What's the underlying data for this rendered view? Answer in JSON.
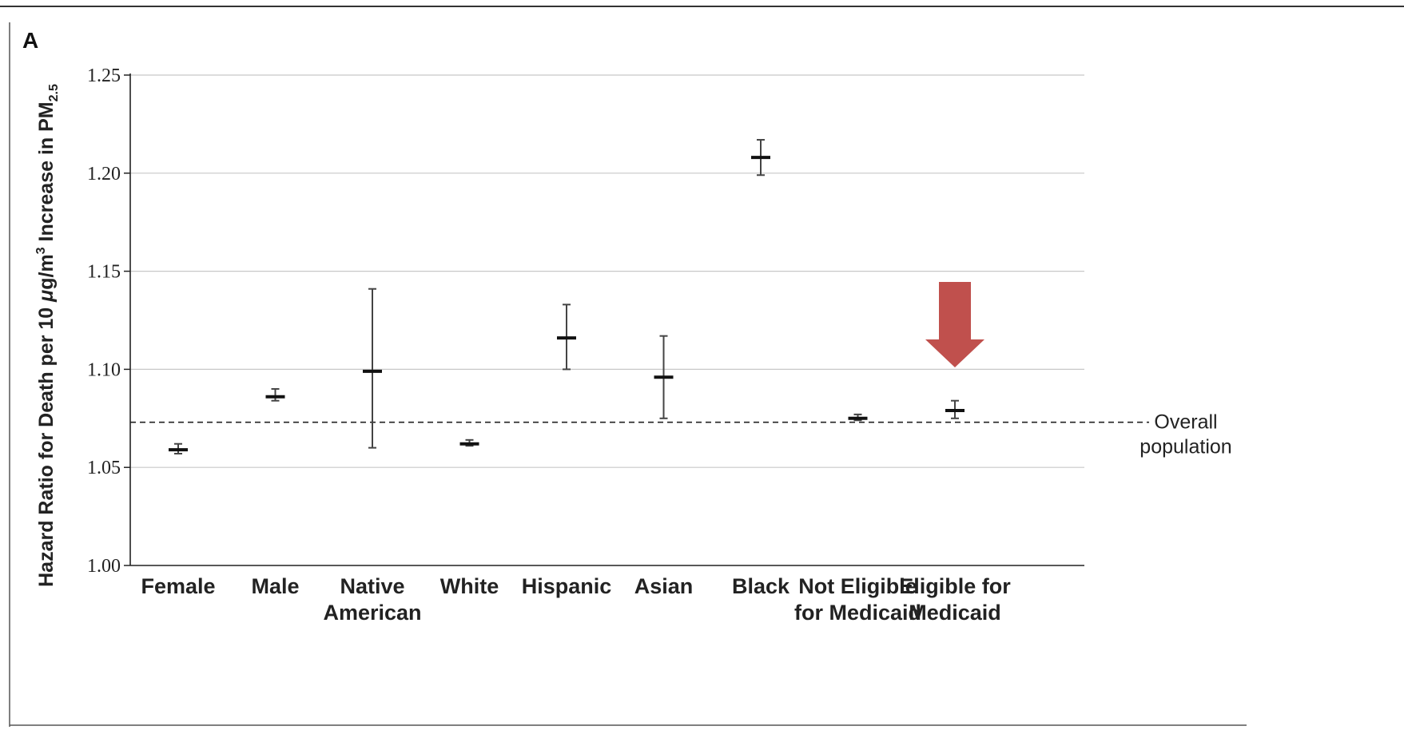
{
  "panel_label": "A",
  "chart_data": {
    "type": "scatter",
    "title": "",
    "ylabel_parts": {
      "main": "Hazard Ratio for Death per 10 ",
      "unit_mu": "μ",
      "unit_g": "g/m",
      "unit_sup": "3",
      "after": " Increase in PM",
      "sub": "2.5"
    },
    "xlabel": "",
    "ylim": [
      1.0,
      1.25
    ],
    "y_ticks": [
      1.0,
      1.05,
      1.1,
      1.15,
      1.2,
      1.25
    ],
    "y_tick_labels": [
      "1.00",
      "1.05",
      "1.10",
      "1.15",
      "1.20",
      "1.25"
    ],
    "grid": true,
    "categories": [
      [
        "Female"
      ],
      [
        "Male"
      ],
      [
        "Native",
        "American"
      ],
      [
        "White"
      ],
      [
        "Hispanic"
      ],
      [
        "Asian"
      ],
      [
        "Black"
      ],
      [
        "Not Eligible",
        "for Medicaid"
      ],
      [
        "Eligible for",
        "Medicaid"
      ]
    ],
    "estimates": [
      1.059,
      1.086,
      1.099,
      1.062,
      1.116,
      1.096,
      1.208,
      1.075,
      1.079
    ],
    "ci_lower": [
      1.057,
      1.084,
      1.06,
      1.061,
      1.1,
      1.075,
      1.199,
      1.074,
      1.075
    ],
    "ci_upper": [
      1.062,
      1.09,
      1.141,
      1.064,
      1.133,
      1.117,
      1.217,
      1.077,
      1.084
    ],
    "reference_line": {
      "value": 1.073,
      "label_lines": [
        "Overall",
        "population"
      ]
    },
    "highlight": {
      "category_index": 8,
      "marker": "down-arrow",
      "color": "#c0504d"
    }
  }
}
